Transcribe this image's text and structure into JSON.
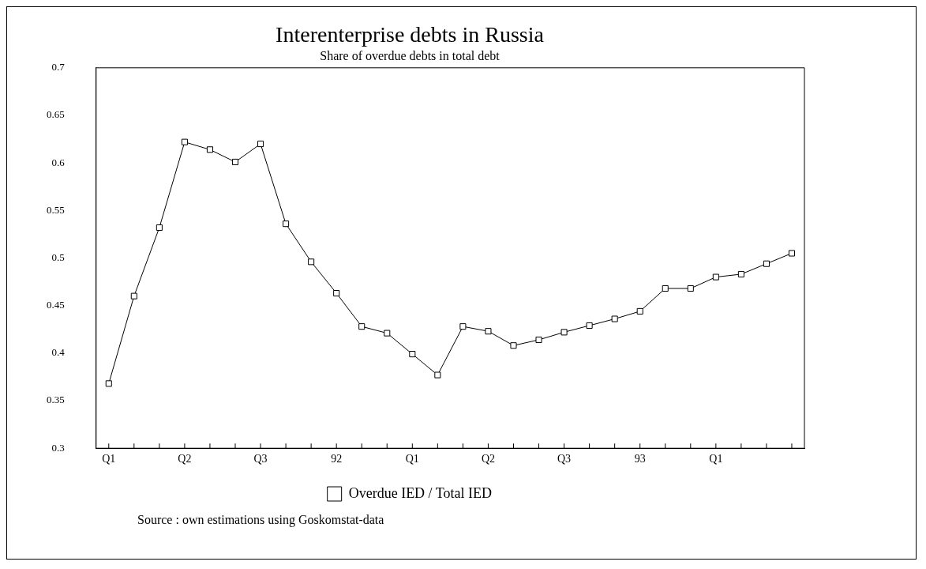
{
  "chart_data": {
    "type": "line",
    "title": "Interenterprise debts in Russia",
    "subtitle": "Share of overdue debts in total debt",
    "categories": [
      "Q1",
      null,
      null,
      "Q2",
      null,
      null,
      "Q3",
      null,
      null,
      "92",
      null,
      null,
      "Q1",
      null,
      null,
      "Q2",
      null,
      null,
      "Q3",
      null,
      null,
      "93",
      null,
      null,
      "Q1",
      null,
      null,
      null
    ],
    "series": [
      {
        "name": "Overdue IED / Total IED",
        "color": "#000000",
        "values": [
          0.368,
          0.46,
          0.532,
          0.622,
          0.614,
          0.601,
          0.62,
          0.536,
          0.496,
          0.463,
          0.428,
          0.421,
          0.399,
          0.377,
          0.428,
          0.423,
          0.408,
          0.414,
          0.422,
          0.429,
          0.436,
          0.444,
          0.468,
          0.468,
          0.48,
          0.483,
          0.494,
          0.505
        ]
      }
    ],
    "ylim": [
      0.3,
      0.7
    ],
    "yticks": [
      0.3,
      0.35,
      0.4,
      0.45,
      0.5,
      0.55,
      0.6,
      0.65,
      0.7
    ],
    "grid": false,
    "legend": "bottom",
    "marker": "square",
    "line_style": "solid",
    "annotations": [
      "Source : own estimations using Goskomstat-data"
    ]
  }
}
